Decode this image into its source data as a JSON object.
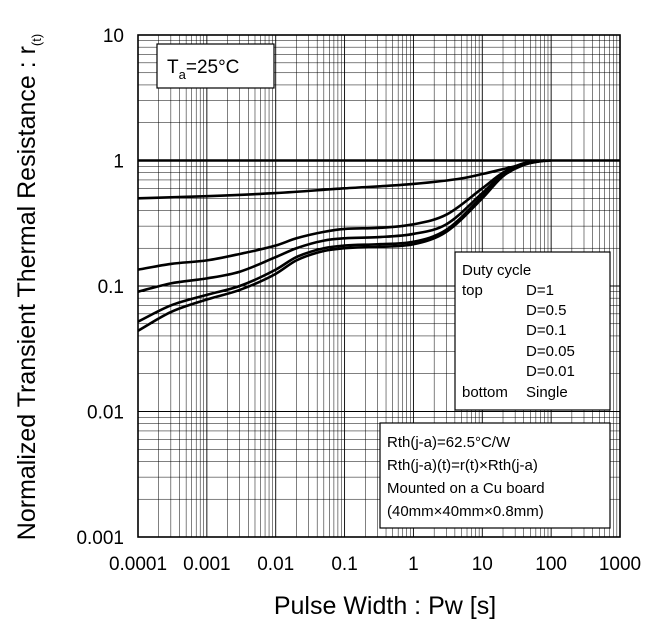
{
  "chart_data": {
    "type": "line",
    "xlabel": "Pulse Width : Pw [s]",
    "ylabel_main": "Normalized Transient Thermal Resistance : r",
    "ylabel_sub": "(t)",
    "x_scale": "log",
    "y_scale": "log",
    "xlim": [
      0.0001,
      1000
    ],
    "ylim": [
      0.001,
      10
    ],
    "grid": true,
    "x_ticks": [
      "0.0001",
      "0.001",
      "0.01",
      "0.1",
      "1",
      "10",
      "100",
      "1000"
    ],
    "y_ticks": [
      "10",
      "1",
      "0.1",
      "0.01",
      "0.001"
    ],
    "series": [
      {
        "name": "D=1",
        "x": [
          0.0001,
          1000
        ],
        "y": [
          1,
          1
        ]
      },
      {
        "name": "D=0.5",
        "x": [
          0.0001,
          0.001,
          0.01,
          0.1,
          1,
          5,
          10,
          30,
          60,
          100
        ],
        "y": [
          0.5,
          0.52,
          0.55,
          0.6,
          0.65,
          0.72,
          0.78,
          0.9,
          0.98,
          1.0
        ]
      },
      {
        "name": "D=0.1",
        "x": [
          0.0001,
          0.0003,
          0.001,
          0.003,
          0.01,
          0.02,
          0.05,
          0.1,
          0.3,
          1,
          3,
          10,
          20,
          40,
          80
        ],
        "y": [
          0.135,
          0.15,
          0.16,
          0.18,
          0.21,
          0.24,
          0.27,
          0.285,
          0.29,
          0.31,
          0.37,
          0.6,
          0.8,
          0.95,
          1.0
        ]
      },
      {
        "name": "D=0.05",
        "x": [
          0.0001,
          0.0003,
          0.001,
          0.003,
          0.01,
          0.02,
          0.05,
          0.1,
          0.3,
          1,
          3,
          10,
          20,
          40,
          80
        ],
        "y": [
          0.09,
          0.105,
          0.115,
          0.13,
          0.17,
          0.2,
          0.23,
          0.24,
          0.245,
          0.26,
          0.31,
          0.55,
          0.78,
          0.94,
          1.0
        ]
      },
      {
        "name": "D=0.01",
        "x": [
          0.0001,
          0.0003,
          0.001,
          0.003,
          0.01,
          0.02,
          0.05,
          0.1,
          0.3,
          1,
          3,
          10,
          20,
          40,
          80
        ],
        "y": [
          0.052,
          0.07,
          0.085,
          0.1,
          0.135,
          0.17,
          0.2,
          0.21,
          0.215,
          0.225,
          0.28,
          0.52,
          0.76,
          0.93,
          1.0
        ]
      },
      {
        "name": "Single",
        "x": [
          0.0001,
          0.0003,
          0.001,
          0.003,
          0.01,
          0.02,
          0.05,
          0.1,
          0.3,
          1,
          3,
          10,
          20,
          40,
          80
        ],
        "y": [
          0.044,
          0.062,
          0.078,
          0.093,
          0.125,
          0.16,
          0.19,
          0.2,
          0.205,
          0.215,
          0.27,
          0.5,
          0.75,
          0.92,
          1.0
        ]
      }
    ],
    "legend": {
      "title": "Duty cycle",
      "top_label": "top",
      "bottom_label": "bottom",
      "entries": [
        "D=1",
        "D=0.5",
        "D=0.1",
        "D=0.05",
        "D=0.01",
        "Single"
      ],
      "placement": "right"
    },
    "annotation_ta": {
      "main": "T",
      "sub": "a",
      "rest": "=25°C"
    },
    "notes": [
      "Rth(j-a)=62.5°C/W",
      "Rth(j-a)(t)=r(t)×Rth(j-a)",
      "Mounted on a Cu board",
      "(40mm×40mm×0.8mm)"
    ]
  }
}
